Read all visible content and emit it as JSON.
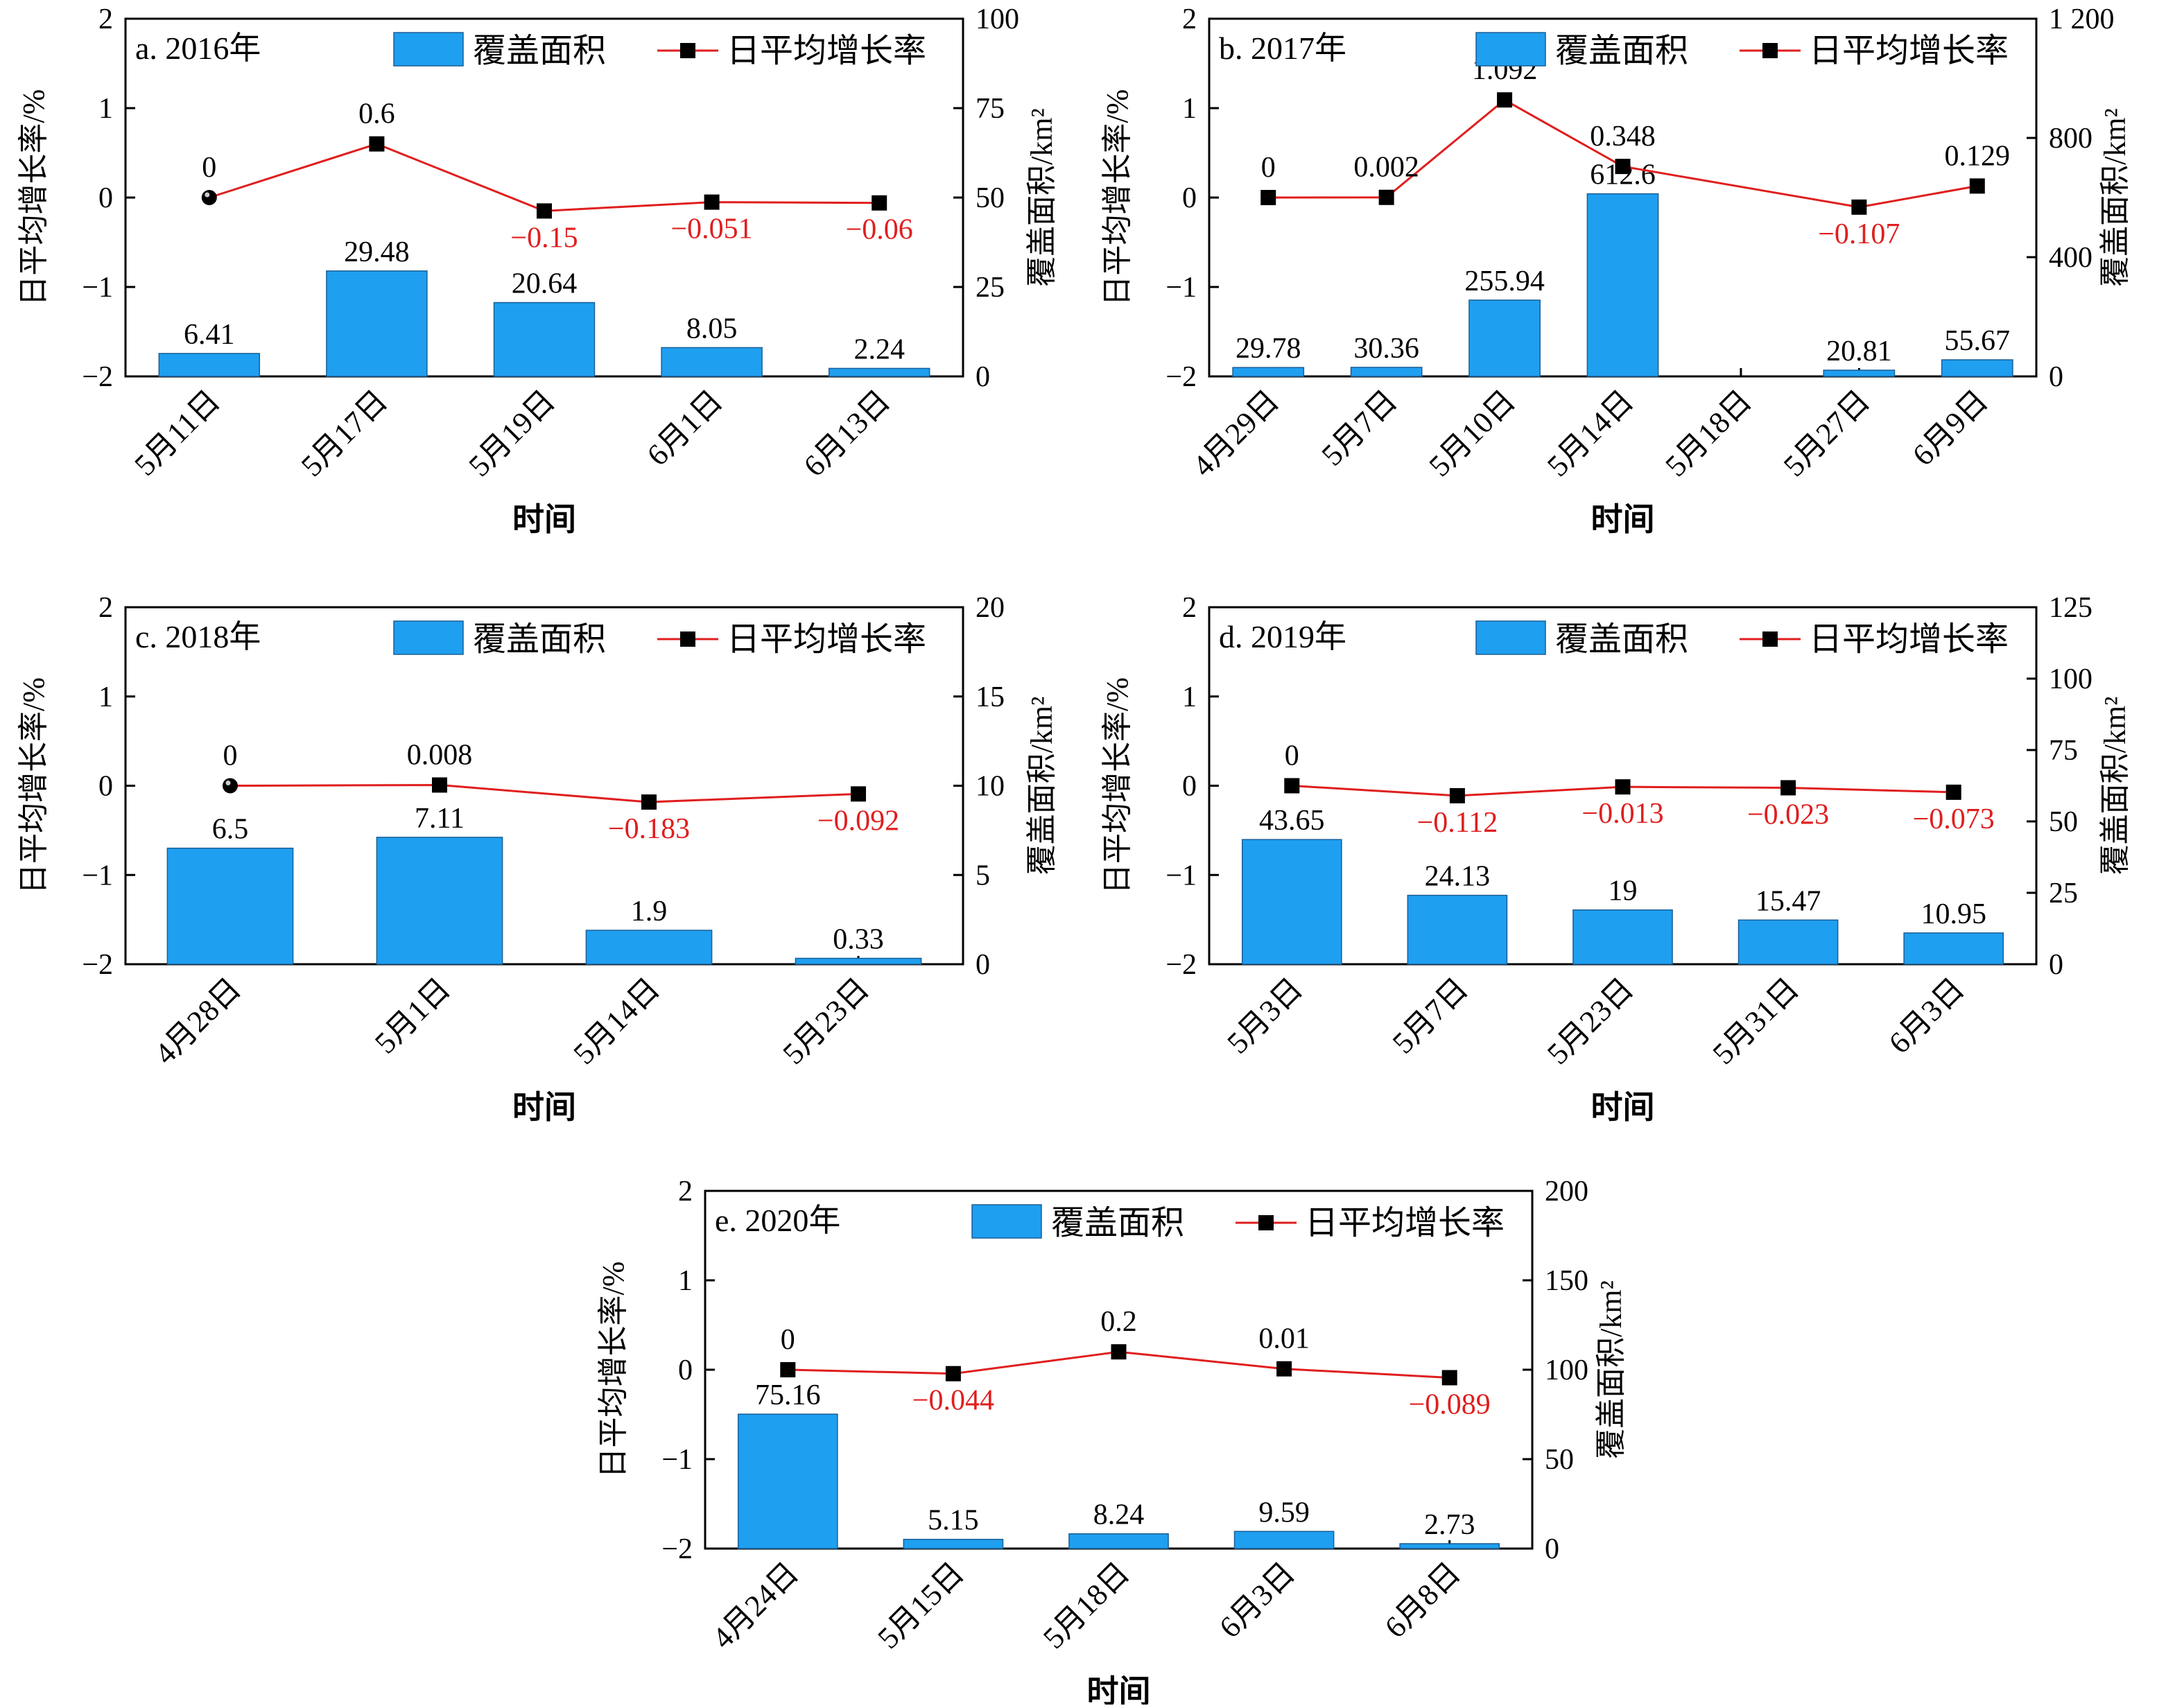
{
  "styles": {
    "bar_color": "#1f9ff0",
    "bar_stroke": "#1a5e95",
    "line_color": "#e01e1e",
    "marker_color": "#000000",
    "negative_label_color": "#e01e1e",
    "text_color": "#000000"
  },
  "legend": {
    "bar_label": "覆盖面积",
    "line_label": "日平均增长率"
  },
  "chart_data": [
    {
      "type": "bar",
      "panel": "a. 2016年",
      "xlabel": "时间",
      "ylabel_left": "日平均增长率/%",
      "ylabel_right": "覆盖面积/km²",
      "categories": [
        "5月11日",
        "5月17日",
        "5月19日",
        "6月1日",
        "6月13日"
      ],
      "series": [
        {
          "name": "覆盖面积",
          "type": "bar",
          "axis": "right",
          "values": [
            6.41,
            29.48,
            20.64,
            8.05,
            2.24
          ],
          "labels": [
            "6.41",
            "29.48",
            "20.64",
            "8.05",
            "2.24"
          ]
        },
        {
          "name": "日平均增长率",
          "type": "line",
          "axis": "left",
          "values": [
            0,
            0.6,
            -0.15,
            -0.051,
            -0.06
          ],
          "labels": [
            "0",
            "0.6",
            "−0.15",
            "−0.051",
            "−0.06"
          ],
          "first_marker": "sphere"
        }
      ],
      "left_ticks": [
        2,
        1,
        0,
        -1,
        -2
      ],
      "left_tick_labels": [
        "2",
        "1",
        "0",
        "−1",
        "−2"
      ],
      "ylim_left": [
        -2,
        2
      ],
      "right_ticks": [
        100,
        75,
        50,
        25,
        0
      ],
      "right_tick_labels": [
        "100",
        "75",
        "50",
        "25",
        "0"
      ],
      "ylim_right": [
        0,
        100
      ],
      "legend_position": "top"
    },
    {
      "type": "bar",
      "panel": "b. 2017年",
      "xlabel": "时间",
      "ylabel_left": "日平均增长率/%",
      "ylabel_right": "覆盖面积/km²",
      "categories": [
        "4月29日",
        "5月7日",
        "5月10日",
        "5月14日",
        "5月18日",
        "5月27日",
        "6月9日"
      ],
      "series": [
        {
          "name": "覆盖面积",
          "type": "bar",
          "axis": "right",
          "values": [
            29.78,
            30.36,
            255.94,
            612.6,
            20.81,
            55.67
          ],
          "positions": [
            0,
            1,
            2,
            3,
            5,
            6
          ],
          "labels": [
            "29.78",
            "30.36",
            "255.94",
            "612.6",
            "20.81",
            "55.67"
          ]
        },
        {
          "name": "日平均增长率",
          "type": "line",
          "axis": "left",
          "values": [
            0,
            0.002,
            1.092,
            0.348,
            -0.107,
            0.129
          ],
          "positions": [
            0,
            1,
            2,
            3,
            5,
            6
          ],
          "labels": [
            "0",
            "0.002",
            "1.092",
            "0.348",
            "−0.107",
            "0.129"
          ],
          "first_marker": "square"
        }
      ],
      "left_ticks": [
        2,
        1,
        0,
        -1,
        -2
      ],
      "left_tick_labels": [
        "2",
        "1",
        "0",
        "−1",
        "−2"
      ],
      "ylim_left": [
        -2,
        2
      ],
      "right_ticks": [
        1200,
        800,
        400,
        0
      ],
      "right_tick_labels": [
        "1 200",
        "800",
        "400",
        "0"
      ],
      "ylim_right": [
        0,
        1200
      ],
      "legend_position": "top"
    },
    {
      "type": "bar",
      "panel": "c. 2018年",
      "xlabel": "时间",
      "ylabel_left": "日平均增长率/%",
      "ylabel_right": "覆盖面积/km²",
      "categories": [
        "4月28日",
        "5月1日",
        "5月14日",
        "5月23日"
      ],
      "series": [
        {
          "name": "覆盖面积",
          "type": "bar",
          "axis": "right",
          "values": [
            6.5,
            7.11,
            1.9,
            0.33
          ],
          "labels": [
            "6.5",
            "7.11",
            "1.9",
            "0.33"
          ]
        },
        {
          "name": "日平均增长率",
          "type": "line",
          "axis": "left",
          "values": [
            0,
            0.008,
            -0.183,
            -0.092
          ],
          "labels": [
            "0",
            "0.008",
            "−0.183",
            "−0.092"
          ],
          "first_marker": "sphere"
        }
      ],
      "left_ticks": [
        2,
        1,
        0,
        -1,
        -2
      ],
      "left_tick_labels": [
        "2",
        "1",
        "0",
        "−1",
        "−2"
      ],
      "ylim_left": [
        -2,
        2
      ],
      "right_ticks": [
        20,
        15,
        10,
        5,
        0
      ],
      "right_tick_labels": [
        "20",
        "15",
        "10",
        "5",
        "0"
      ],
      "ylim_right": [
        0,
        20
      ],
      "legend_position": "top"
    },
    {
      "type": "bar",
      "panel": "d. 2019年",
      "xlabel": "时间",
      "ylabel_left": "日平均增长率/%",
      "ylabel_right": "覆盖面积/km²",
      "categories": [
        "5月3日",
        "5月7日",
        "5月23日",
        "5月31日",
        "6月3日"
      ],
      "series": [
        {
          "name": "覆盖面积",
          "type": "bar",
          "axis": "right",
          "values": [
            43.65,
            24.13,
            19,
            15.47,
            10.95
          ],
          "labels": [
            "43.65",
            "24.13",
            "19",
            "15.47",
            "10.95"
          ]
        },
        {
          "name": "日平均增长率",
          "type": "line",
          "axis": "left",
          "values": [
            0,
            -0.112,
            -0.013,
            -0.023,
            -0.073
          ],
          "labels": [
            "0",
            "−0.112",
            "−0.013",
            "−0.023",
            "−0.073"
          ],
          "first_marker": "square"
        }
      ],
      "left_ticks": [
        2,
        1,
        0,
        -1,
        -2
      ],
      "left_tick_labels": [
        "2",
        "1",
        "0",
        "−1",
        "−2"
      ],
      "ylim_left": [
        -2,
        2
      ],
      "right_ticks": [
        125,
        100,
        75,
        50,
        25,
        0
      ],
      "right_tick_labels": [
        "125",
        "100",
        "75",
        "50",
        "25",
        "0"
      ],
      "ylim_right": [
        0,
        125
      ],
      "legend_position": "top"
    },
    {
      "type": "bar",
      "panel": "e. 2020年",
      "xlabel": "时间",
      "ylabel_left": "日平均增长率/%",
      "ylabel_right": "覆盖面积/km²",
      "categories": [
        "4月24日",
        "5月15日",
        "5月18日",
        "6月3日",
        "6月8日"
      ],
      "series": [
        {
          "name": "覆盖面积",
          "type": "bar",
          "axis": "right",
          "values": [
            75.16,
            5.15,
            8.24,
            9.59,
            2.73
          ],
          "labels": [
            "75.16",
            "5.15",
            "8.24",
            "9.59",
            "2.73"
          ]
        },
        {
          "name": "日平均增长率",
          "type": "line",
          "axis": "left",
          "values": [
            0,
            -0.044,
            0.2,
            0.01,
            -0.089
          ],
          "labels": [
            "0",
            "−0.044",
            "0.2",
            "0.01",
            "−0.089"
          ],
          "first_marker": "square"
        }
      ],
      "left_ticks": [
        2,
        1,
        0,
        -1,
        -2
      ],
      "left_tick_labels": [
        "2",
        "1",
        "0",
        "−1",
        "−2"
      ],
      "ylim_left": [
        -2,
        2
      ],
      "right_ticks": [
        200,
        150,
        100,
        50,
        0
      ],
      "right_tick_labels": [
        "200",
        "150",
        "100",
        "50",
        "0"
      ],
      "ylim_right": [
        0,
        200
      ],
      "legend_position": "top"
    }
  ]
}
